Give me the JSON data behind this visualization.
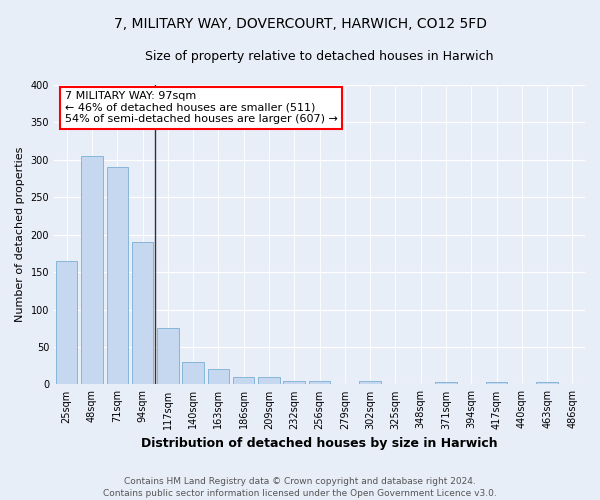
{
  "title": "7, MILITARY WAY, DOVERCOURT, HARWICH, CO12 5FD",
  "subtitle": "Size of property relative to detached houses in Harwich",
  "xlabel": "Distribution of detached houses by size in Harwich",
  "ylabel": "Number of detached properties",
  "categories": [
    "25sqm",
    "48sqm",
    "71sqm",
    "94sqm",
    "117sqm",
    "140sqm",
    "163sqm",
    "186sqm",
    "209sqm",
    "232sqm",
    "256sqm",
    "279sqm",
    "302sqm",
    "325sqm",
    "348sqm",
    "371sqm",
    "394sqm",
    "417sqm",
    "440sqm",
    "463sqm",
    "486sqm"
  ],
  "values": [
    165,
    305,
    290,
    190,
    75,
    30,
    20,
    10,
    10,
    5,
    5,
    0,
    5,
    0,
    0,
    3,
    0,
    3,
    0,
    3,
    0
  ],
  "bar_color": "#c5d8f0",
  "bar_edge_color": "#7aafd4",
  "annotation_box_text": [
    "7 MILITARY WAY: 97sqm",
    "← 46% of detached houses are smaller (511)",
    "54% of semi-detached houses are larger (607) →"
  ],
  "annotation_box_color": "white",
  "annotation_box_edge_color": "red",
  "vline_x_pos": 3.5,
  "ylim": [
    0,
    400
  ],
  "yticks": [
    0,
    50,
    100,
    150,
    200,
    250,
    300,
    350,
    400
  ],
  "background_color": "#e8eef8",
  "plot_background_color": "#e8eef8",
  "footer_text": "Contains HM Land Registry data © Crown copyright and database right 2024.\nContains public sector information licensed under the Open Government Licence v3.0.",
  "title_fontsize": 10,
  "subtitle_fontsize": 9,
  "xlabel_fontsize": 9,
  "ylabel_fontsize": 8,
  "tick_fontsize": 7,
  "footer_fontsize": 6.5,
  "annotation_fontsize": 8
}
